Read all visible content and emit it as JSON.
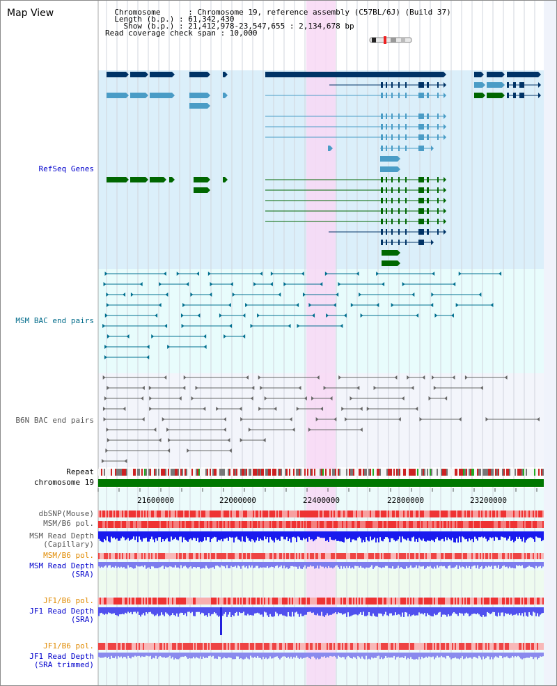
{
  "title": "Map View",
  "info": {
    "chromosome_key": "  Chromosome",
    "chromosome_val": "Chromosome 19, reference assembly (C57BL/6J) (Build 37)",
    "length_key": "  Length (b.p.)",
    "length_val": "61,342,430",
    "show_key": "    Show (b.p.)",
    "show_val": "21,412,978-23,547,655 : 2,134,678 bp",
    "coverage_line": "Read coverage check span : 10,000"
  },
  "tracks": {
    "refseq": "RefSeq Genes",
    "msm_bac": "MSM BAC end pairs",
    "b6n_bac": "B6N BAC end pairs",
    "repeat": "Repeat",
    "chromosome": "chromosome 19",
    "dbsnp": "dbSNP(Mouse)",
    "msm_pol": "MSM/B6 pol.",
    "msm_depth_cap_1": "MSM Read Depth",
    "msm_depth_cap_2": "(Capillary)",
    "msm_pol2": "MSM/B6 pol.",
    "msm_depth_sra_1": "MSM Read Depth",
    "msm_depth_sra_2": "(SRA)",
    "jf1_pol": "JF1/B6 pol.",
    "jf1_depth_1": "JF1 Read Depth",
    "jf1_depth_2": "(SRA)",
    "jf1_pol2": "JF1/B6 pol.",
    "jf1_trim_1": "JF1 Read Depth",
    "jf1_trim_2": "(SRA trimmed)"
  },
  "axis": {
    "ticks": [
      "21600000",
      "22000000",
      "22400000",
      "22800000",
      "23200000"
    ]
  },
  "colors": {
    "refseq_bg": "#dbeffa",
    "bac_bg": "#e8fcfc",
    "b6n_bg": "#f3f5fb",
    "highlight": "#f8d8f4",
    "gene_dark": "#003366",
    "gene_mid": "#4a9cc6",
    "gene_green": "#006600",
    "msm_bac": "#006f8f",
    "b6n_bac": "#666666",
    "chrom_bar": "#007700",
    "snp": "#ee3333",
    "depth": "#1a1aee",
    "depth_light": "#7c7cee"
  }
}
